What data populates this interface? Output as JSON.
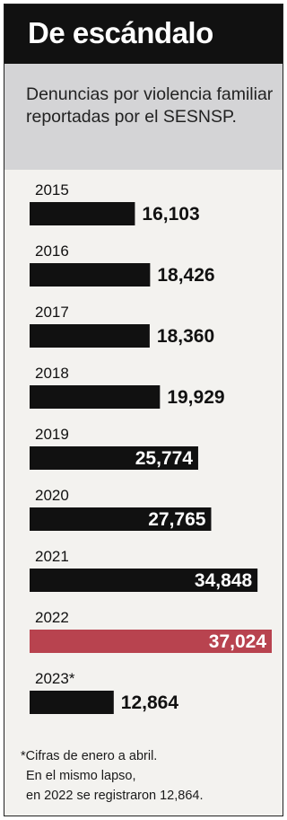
{
  "title": "De escándalo",
  "subtitle": "Denuncias por violencia familiar reportadas por el SESNSP.",
  "footnote": [
    "*Cifras de enero a abril.",
    "En el mismo lapso,",
    "en 2022 se registraron 12,864."
  ],
  "colors": {
    "bar": "#111111",
    "highlight": "#b8434f",
    "inside_label": "#ffffff",
    "outside_label": "#111111"
  },
  "chart_data": {
    "type": "bar",
    "orientation": "horizontal",
    "categories": [
      "2015",
      "2016",
      "2017",
      "2018",
      "2019",
      "2020",
      "2021",
      "2022",
      "2023*"
    ],
    "values": [
      16103,
      18426,
      18360,
      19929,
      25774,
      27765,
      34848,
      37024,
      12864
    ],
    "value_labels": [
      "16,103",
      "18,426",
      "18,360",
      "19,929",
      "25,774",
      "27,765",
      "34,848",
      "37,024",
      "12,864"
    ],
    "highlight_index": 7
  }
}
